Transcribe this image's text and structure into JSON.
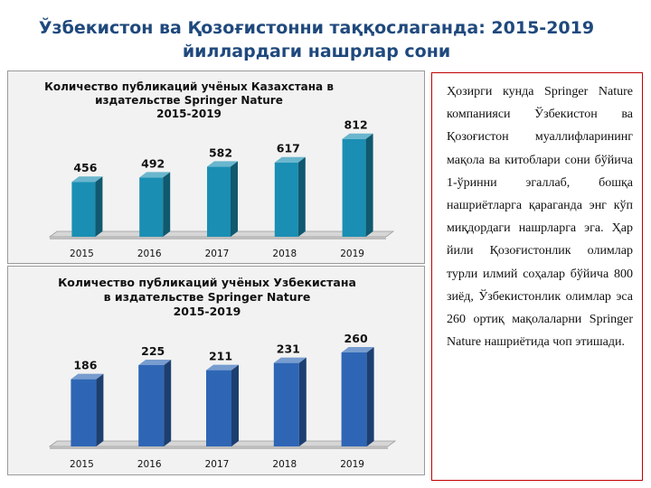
{
  "slide": {
    "title_line1": "Ўзбекистон ва Қозоғистонни таққослаганда: 2015-2019",
    "title_line2": "йиллардаги нашрлар сони"
  },
  "colors": {
    "title": "#1f497d",
    "bar_kz": "#1a8fb3",
    "bar_uz": "#2e66b5",
    "panel_border": "#c00000"
  },
  "chart_data": [
    {
      "type": "bar",
      "title_line1": "Количество публикаций учёных Казахстана  в",
      "title_line2": "издательстве Springer Nature",
      "title_line3": "2015-2019",
      "categories": [
        "2015",
        "2016",
        "2017",
        "2018",
        "2019"
      ],
      "values": [
        456,
        492,
        582,
        617,
        812
      ],
      "ylim": [
        0,
        900
      ],
      "grid": false,
      "style": "3d"
    },
    {
      "type": "bar",
      "title_line1": "Количество публикаций учёных Узбекистана",
      "title_line2": "в издательстве Springer Nature",
      "title_line3": "2015-2019",
      "categories": [
        "2015",
        "2016",
        "2017",
        "2018",
        "2019"
      ],
      "values": [
        186,
        225,
        211,
        231,
        260
      ],
      "ylim": [
        0,
        290
      ],
      "grid": false,
      "style": "3d"
    }
  ],
  "panel": {
    "text": "Ҳозирги кунда Springer Nature компанияси Ўзбекистон ва Қозоғистон муаллифларининг мақола ва китоблари сони бўйича 1-ўринни эгаллаб, бошқа нашриётларга қараганда энг кўп миқдордаги нашрларга эга. Ҳар йили Қозоғистонлик олимлар турли илмий соҳалар бўйича 800 зиёд, Ўзбекистонлик олимлар эса 260 ортиқ мақолаларни Springer Nature нашриётида чоп этишади."
  }
}
